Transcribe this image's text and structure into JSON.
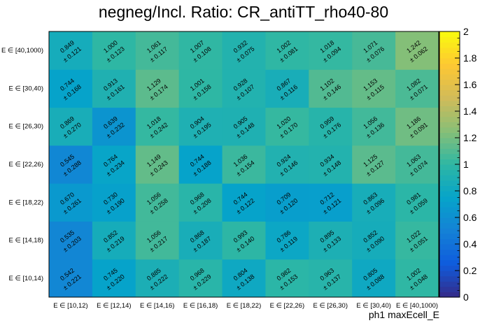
{
  "chart_data": {
    "type": "heatmap",
    "title": "negneg/Incl. Ratio: CR_antiTT_rho40-80",
    "xlabel": "ph1 maxEcell_E",
    "ylabel": "",
    "x_categories": [
      "E ∈ [10,12)",
      "E ∈ [12,14)",
      "E ∈ [14,16)",
      "E ∈ [16,18)",
      "E ∈ [18,22)",
      "E ∈ [22,26)",
      "E ∈ [26,30)",
      "E ∈ [30,40)",
      "E ∈ [40,1000)"
    ],
    "y_categories": [
      "E ∈ [10,14)",
      "E ∈ [14,18)",
      "E ∈ [18,22)",
      "E ∈ [22,26)",
      "E ∈ [26,30)",
      "E ∈ [30,40)",
      "E ∈ [40,1000)"
    ],
    "values": [
      [
        0.542,
        0.745,
        0.885,
        0.968,
        0.804,
        0.982,
        0.963,
        0.805,
        1.002
      ],
      [
        0.535,
        0.852,
        1.056,
        0.868,
        0.993,
        0.786,
        0.895,
        0.852,
        1.022
      ],
      [
        0.67,
        0.73,
        1.056,
        0.968,
        0.744,
        0.709,
        0.712,
        0.863,
        0.981
      ],
      [
        0.545,
        0.764,
        1.149,
        0.744,
        1.036,
        0.924,
        0.934,
        1.125,
        1.063
      ],
      [
        0.869,
        0.639,
        1.018,
        0.904,
        0.905,
        1.02,
        0.959,
        1.056,
        1.186
      ],
      [
        0.744,
        0.913,
        1.129,
        1.001,
        0.928,
        0.867,
        1.102,
        1.153,
        1.082
      ],
      [
        0.849,
        1.0,
        1.061,
        1.007,
        0.932,
        1.002,
        1.018,
        1.071,
        1.242
      ]
    ],
    "errors": [
      [
        0.221,
        0.22,
        0.222,
        0.229,
        0.138,
        0.153,
        0.137,
        0.088,
        0.048
      ],
      [
        0.203,
        0.219,
        0.217,
        0.187,
        0.14,
        0.119,
        0.133,
        0.09,
        0.051
      ],
      [
        0.261,
        0.19,
        0.258,
        0.208,
        0.122,
        0.12,
        0.121,
        0.096,
        0.059
      ],
      [
        0.288,
        0.234,
        0.243,
        0.188,
        0.154,
        0.146,
        0.148,
        0.127,
        0.074
      ],
      [
        0.27,
        0.232,
        0.242,
        0.195,
        0.148,
        0.17,
        0.176,
        0.136,
        0.091
      ],
      [
        0.168,
        0.161,
        0.174,
        0.158,
        0.107,
        0.116,
        0.146,
        0.115,
        0.071
      ],
      [
        0.121,
        0.123,
        0.117,
        0.108,
        0.075,
        0.081,
        0.094,
        0.076,
        0.062
      ]
    ],
    "zlim": [
      0,
      2
    ],
    "colorbar_ticks": [
      "0",
      "0.2",
      "0.4",
      "0.6",
      "0.8",
      "1",
      "1.2",
      "1.4",
      "1.6",
      "1.8",
      "2"
    ],
    "palette": [
      "#352a87",
      "#0f5cdd",
      "#1481d6",
      "#06a4ca",
      "#2eb7a4",
      "#87bf77",
      "#d1bb59",
      "#fec832",
      "#f9fb0e"
    ],
    "grid": false
  }
}
